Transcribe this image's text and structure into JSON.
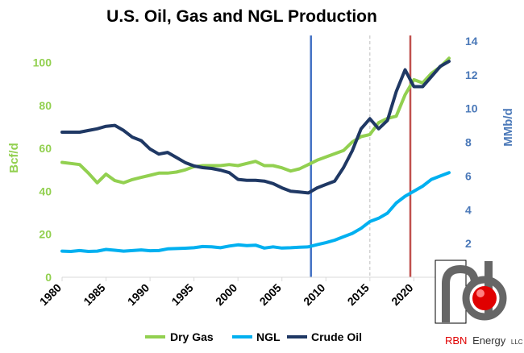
{
  "chart_data": {
    "type": "line",
    "title": "U.S. Oil, Gas and NGL Production",
    "ylabel_left": "Bcf/d",
    "ylabel_right": "MMb/d",
    "xlim": [
      1980,
      2024
    ],
    "ylim_left": [
      0,
      110
    ],
    "ylim_right": [
      0,
      14
    ],
    "x_ticks": [
      1980,
      1985,
      1990,
      1995,
      2000,
      2005,
      2010,
      2015,
      2020
    ],
    "y_ticks_left": [
      0,
      20,
      40,
      60,
      80,
      100
    ],
    "y_ticks_right": [
      2,
      4,
      6,
      8,
      10,
      12,
      14
    ],
    "grid": false,
    "legend_position": "bottom",
    "x": [
      1980,
      1981,
      1982,
      1983,
      1984,
      1985,
      1986,
      1987,
      1988,
      1989,
      1990,
      1991,
      1992,
      1993,
      1994,
      1995,
      1996,
      1997,
      1998,
      1999,
      2000,
      2001,
      2002,
      2003,
      2004,
      2005,
      2006,
      2007,
      2008,
      2009,
      2010,
      2011,
      2012,
      2013,
      2014,
      2015,
      2016,
      2017,
      2018,
      2019,
      2020,
      2021,
      2022,
      2023,
      2024
    ],
    "series": [
      {
        "name": "Dry Gas",
        "axis": "left",
        "color": "#92d050",
        "values": [
          53.5,
          53,
          52.5,
          48.5,
          44,
          48,
          45,
          44,
          45.5,
          46.5,
          47.5,
          48.5,
          48.5,
          49,
          50,
          51.5,
          52,
          52,
          52,
          52.5,
          52,
          53,
          54,
          52,
          52,
          51,
          49.5,
          50.5,
          52.5,
          54.5,
          56,
          57.5,
          59,
          63,
          65.5,
          66.5,
          72,
          74,
          75,
          85,
          92,
          90.5,
          95,
          98,
          102
        ]
      },
      {
        "name": "NGL",
        "axis": "right",
        "color": "#00b0f0",
        "values": [
          1.55,
          1.53,
          1.58,
          1.53,
          1.55,
          1.65,
          1.6,
          1.55,
          1.58,
          1.62,
          1.57,
          1.58,
          1.68,
          1.7,
          1.72,
          1.75,
          1.82,
          1.8,
          1.75,
          1.85,
          1.92,
          1.88,
          1.9,
          1.73,
          1.8,
          1.73,
          1.75,
          1.78,
          1.8,
          1.93,
          2.05,
          2.2,
          2.4,
          2.6,
          2.9,
          3.3,
          3.5,
          3.8,
          4.4,
          4.8,
          5.1,
          5.4,
          5.8,
          6.0,
          6.2
        ]
      },
      {
        "name": "Crude Oil",
        "axis": "right",
        "color": "#1f3864",
        "values": [
          8.6,
          8.6,
          8.6,
          8.7,
          8.8,
          8.95,
          9.0,
          8.7,
          8.3,
          8.1,
          7.6,
          7.3,
          7.4,
          7.1,
          6.8,
          6.6,
          6.5,
          6.45,
          6.35,
          6.2,
          5.8,
          5.75,
          5.75,
          5.7,
          5.55,
          5.3,
          5.1,
          5.05,
          5.0,
          5.3,
          5.5,
          5.7,
          6.5,
          7.5,
          8.8,
          9.4,
          8.8,
          9.3,
          11.0,
          12.3,
          11.3,
          11.3,
          11.9,
          12.5,
          12.8
        ]
      }
    ],
    "reference_lines": [
      {
        "x": 2008.3,
        "color": "#4472c4"
      },
      {
        "x": 2015,
        "color": "#bfbfbf"
      },
      {
        "x": 2019.6,
        "color": "#c0504d"
      }
    ]
  },
  "brand": {
    "name_colored": "RBN",
    "name_rest": "Energy",
    "suffix": "LLC"
  }
}
